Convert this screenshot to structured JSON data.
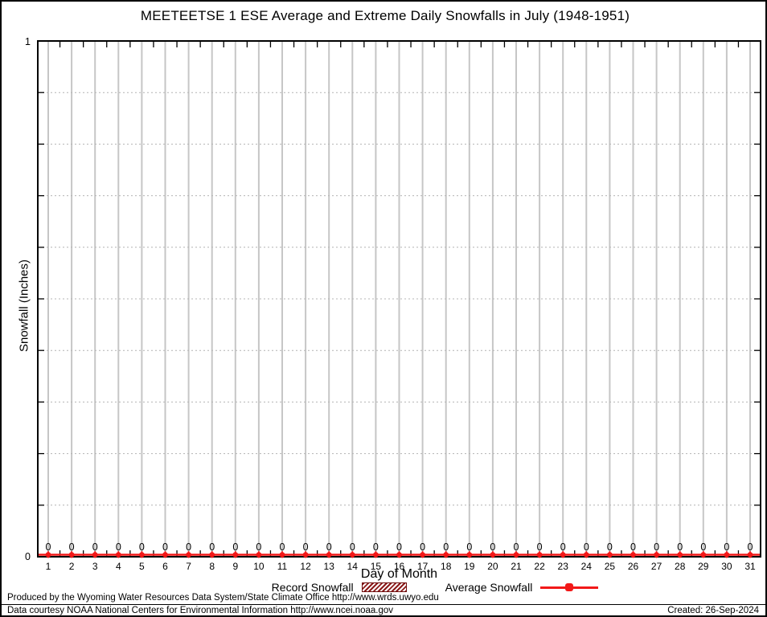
{
  "chart_data": {
    "type": "line",
    "title": "MEETEETSE 1 ESE Average and Extreme Daily Snowfalls in July (1948-1951)",
    "xlabel": "Day of Month",
    "ylabel": "Snowfall (Inches)",
    "x": [
      1,
      2,
      3,
      4,
      5,
      6,
      7,
      8,
      9,
      10,
      11,
      12,
      13,
      14,
      15,
      16,
      17,
      18,
      19,
      20,
      21,
      22,
      23,
      24,
      25,
      26,
      27,
      28,
      29,
      30,
      31
    ],
    "series": [
      {
        "name": "Record Snowfall",
        "style": "boxes-hatched",
        "color": "#8b1a1a",
        "values": [
          0,
          0,
          0,
          0,
          0,
          0,
          0,
          0,
          0,
          0,
          0,
          0,
          0,
          0,
          0,
          0,
          0,
          0,
          0,
          0,
          0,
          0,
          0,
          0,
          0,
          0,
          0,
          0,
          0,
          0,
          0
        ]
      },
      {
        "name": "Average Snowfall",
        "style": "linespoints",
        "color": "#f21818",
        "values": [
          0,
          0,
          0,
          0,
          0,
          0,
          0,
          0,
          0,
          0,
          0,
          0,
          0,
          0,
          0,
          0,
          0,
          0,
          0,
          0,
          0,
          0,
          0,
          0,
          0,
          0,
          0,
          0,
          0,
          0,
          0
        ]
      }
    ],
    "point_value_labels": [
      "0",
      "0",
      "0",
      "0",
      "0",
      "0",
      "0",
      "0",
      "0",
      "0",
      "0",
      "0",
      "0",
      "0",
      "0",
      "0",
      "0",
      "0",
      "0",
      "0",
      "0",
      "0",
      "0",
      "0",
      "0",
      "0",
      "0",
      "0",
      "0",
      "0",
      "0"
    ],
    "ylim": [
      0,
      1
    ],
    "ytick_labels": [
      "0",
      "1"
    ],
    "ytick_interval": 0.1,
    "grid": {
      "vertical": "solid-gray",
      "horizontal": "dashed-gray",
      "on": true
    },
    "legend_position": "bottom-center"
  },
  "legend": {
    "record_label": "Record Snowfall",
    "average_label": "Average Snowfall"
  },
  "footer": {
    "line1": "Produced by the Wyoming Water Resources Data System/State Climate Office http://www.wrds.uwyo.edu",
    "line2": "Data courtesy NOAA National Centers for Environmental Information http://www.ncei.noaa.gov",
    "created": "Created: 26-Sep-2024"
  },
  "colors": {
    "average_red": "#f21818",
    "record_dark_red": "#8b1a1a",
    "grid_vertical_gray": "#c6c6c6",
    "grid_horizontal_gray": "#b4b4b4",
    "axis_black": "#000000"
  }
}
